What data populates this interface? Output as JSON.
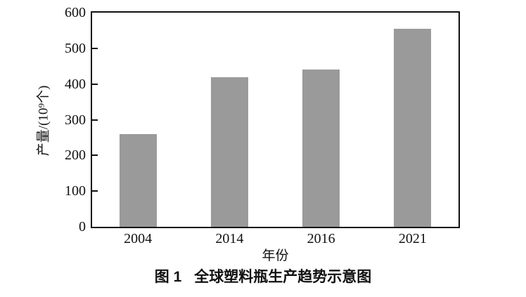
{
  "figure": {
    "caption_label": "图 1",
    "caption_title": "全球塑料瓶生产趋势示意图"
  },
  "chart_data": {
    "type": "bar",
    "title": "",
    "xlabel": "年份",
    "ylabel": "产量/(10⁹个)",
    "categories": [
      "2004",
      "2014",
      "2016",
      "2021"
    ],
    "values": [
      260,
      420,
      440,
      555
    ],
    "ylim": [
      0,
      600
    ],
    "yticks": [
      0,
      100,
      200,
      300,
      400,
      500,
      600
    ],
    "bar_color": "#9a9a9a",
    "axis_color": "#111111",
    "grid": false,
    "legend": false
  }
}
